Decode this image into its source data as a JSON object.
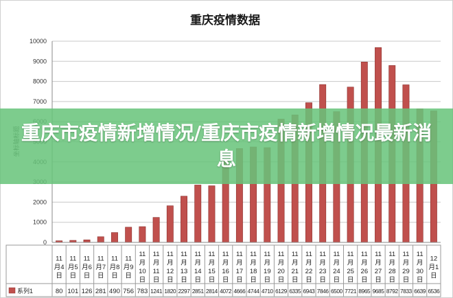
{
  "chart_data": {
    "type": "bar",
    "title": "重庆疫情数据",
    "ylabel": "坐标轴标题",
    "ylim": [
      0,
      10000
    ],
    "yticks": [
      0,
      1000,
      2000,
      3000,
      4000,
      5000,
      6000,
      7000,
      8000,
      9000,
      10000
    ],
    "grid": true,
    "legend": "table-left",
    "bar_color": "#c0504d",
    "categories": [
      "11月4日",
      "11月5日",
      "11月6日",
      "11月7日",
      "11月8日",
      "11月9日",
      "11月10日",
      "11月11日",
      "11月12日",
      "11月13日",
      "11月14日",
      "11月15日",
      "11月16日",
      "11月17日",
      "11月18日",
      "11月19日",
      "11月20日",
      "11月21日",
      "11月22日",
      "11月23日",
      "11月24日",
      "11月25日",
      "11月26日",
      "11月27日",
      "11月28日",
      "11月29日",
      "11月30日",
      "12月1日"
    ],
    "series": [
      {
        "name": "系列1",
        "values": [
          80,
          101,
          126,
          281,
          490,
          756,
          783,
          1241,
          1820,
          2297,
          2851,
          2814,
          4072,
          4666,
          4744,
          4710,
          6129,
          6335,
          6943,
          7846,
          6500,
          7721,
          8965,
          9685,
          8792,
          7833,
          6639,
          6536
        ]
      }
    ],
    "table_values": [
      "80",
      "101",
      "126",
      "281",
      "490",
      "756",
      "783",
      "1241",
      "1820",
      "2297",
      "2851",
      "2814",
      "4072",
      "4666",
      "4744",
      "4710",
      "6129",
      "6335",
      "6943",
      "7846",
      "6500",
      "7721",
      "8965",
      "9685",
      "8792",
      "7833",
      "6639",
      "6536"
    ]
  },
  "banner": {
    "text": "重庆市疫情新增情况/重庆市疫情新增情况最新消息"
  }
}
